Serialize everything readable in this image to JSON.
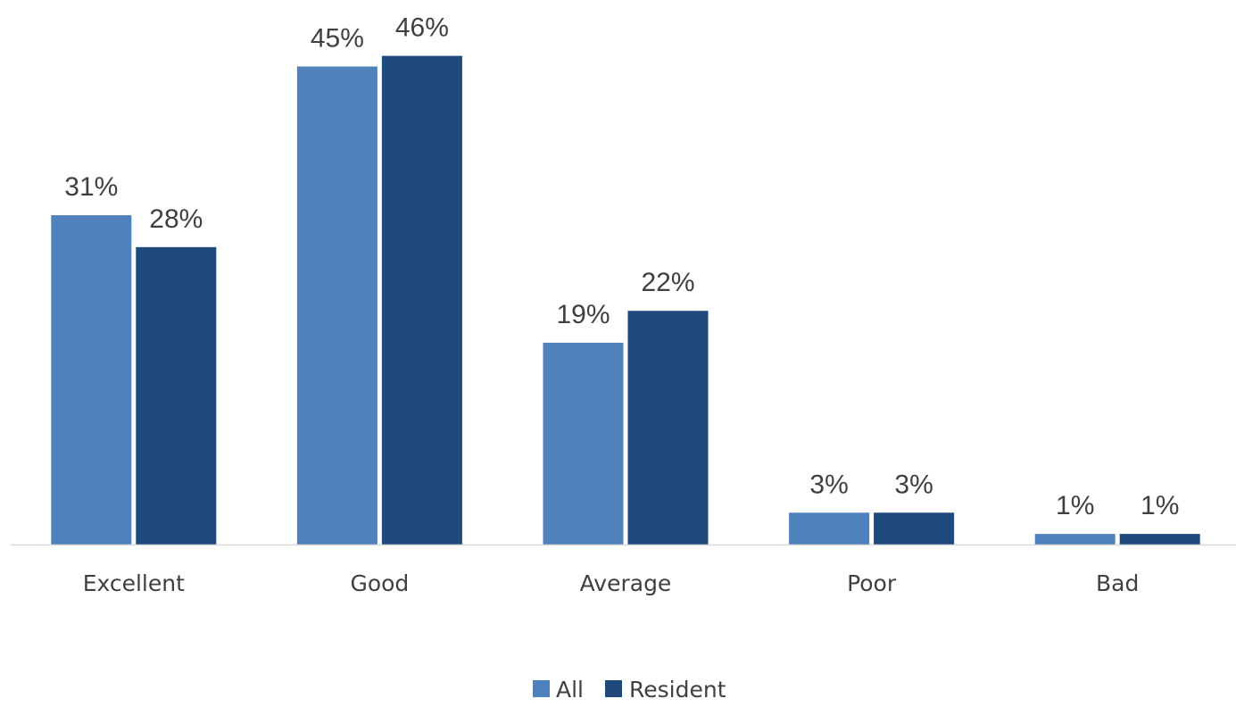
{
  "chart_data": {
    "type": "bar",
    "title": "",
    "xlabel": "",
    "ylabel": "",
    "categories": [
      "Excellent",
      "Good",
      "Average",
      "Poor",
      "Bad"
    ],
    "series": [
      {
        "name": "All",
        "color": "#4F81BD",
        "values": [
          31,
          45,
          19,
          3,
          1
        ],
        "labels": [
          "31%",
          "45%",
          "19%",
          "3%",
          "1%"
        ]
      },
      {
        "name": "Resident",
        "color": "#1F497D",
        "values": [
          28,
          46,
          22,
          3,
          1
        ],
        "labels": [
          "28%",
          "46%",
          "22%",
          "3%",
          "1%"
        ]
      }
    ],
    "value_unit": "%",
    "ylim": [
      0,
      50
    ],
    "grid": false,
    "legend": "bottom-center",
    "axis_line_color": "#D9D9D9",
    "text_color": "#404040"
  }
}
